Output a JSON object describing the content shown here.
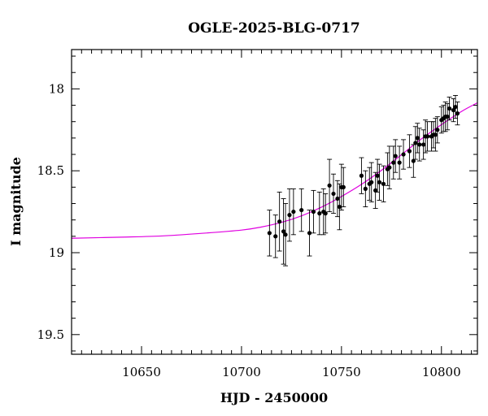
{
  "chart_data": {
    "type": "scatter",
    "title": "OGLE-2025-BLG-0717",
    "xlabel": "HJD - 2450000",
    "ylabel": "I magnitude",
    "xlim": [
      10615,
      10818
    ],
    "ylim": [
      19.62,
      17.76
    ],
    "y_inverted": true,
    "x_major_ticks": [
      10650,
      10700,
      10750,
      10800
    ],
    "x_minor_step": 5,
    "y_major_ticks": [
      18,
      18.5,
      19,
      19.5
    ],
    "y_tick_labels": [
      "18",
      "18.5",
      "19",
      "19.5"
    ],
    "y_minor_step": 0.1,
    "grid": false,
    "colors": {
      "points": "#000000",
      "errorbars": "#000000",
      "model": "#e000e0"
    },
    "observations": {
      "x": [
        10714,
        10717,
        10719,
        10721,
        10722,
        10724,
        10726,
        10730,
        10734,
        10736,
        10739,
        10741,
        10742,
        10744,
        10746,
        10748,
        10749,
        10750,
        10751,
        10760,
        10762,
        10764,
        10765,
        10767,
        10768,
        10769,
        10771,
        10773,
        10774,
        10776,
        10777,
        10779,
        10781,
        10784,
        10786,
        10787,
        10788,
        10789,
        10791,
        10792,
        10793,
        10795,
        10796,
        10797,
        10798,
        10800,
        10801,
        10802,
        10803,
        10804,
        10806,
        10807,
        10808
      ],
      "y": [
        18.88,
        18.9,
        18.81,
        18.87,
        18.89,
        18.77,
        18.75,
        18.74,
        18.88,
        18.75,
        18.76,
        18.75,
        18.76,
        18.59,
        18.64,
        18.67,
        18.72,
        18.6,
        18.6,
        18.53,
        18.61,
        18.58,
        18.57,
        18.62,
        18.53,
        18.57,
        18.58,
        18.49,
        18.48,
        18.45,
        18.41,
        18.45,
        18.4,
        18.38,
        18.44,
        18.33,
        18.3,
        18.34,
        18.34,
        18.29,
        18.29,
        18.29,
        18.28,
        18.28,
        18.25,
        18.19,
        18.18,
        18.17,
        18.17,
        18.12,
        18.13,
        18.11,
        18.15
      ],
      "err": [
        0.14,
        0.13,
        0.18,
        0.2,
        0.19,
        0.16,
        0.14,
        0.13,
        0.14,
        0.13,
        0.13,
        0.14,
        0.12,
        0.16,
        0.12,
        0.11,
        0.14,
        0.14,
        0.12,
        0.11,
        0.11,
        0.1,
        0.12,
        0.11,
        0.1,
        0.11,
        0.11,
        0.1,
        0.13,
        0.1,
        0.1,
        0.1,
        0.09,
        0.1,
        0.1,
        0.1,
        0.09,
        0.1,
        0.09,
        0.1,
        0.09,
        0.09,
        0.08,
        0.1,
        0.08,
        0.08,
        0.08,
        0.09,
        0.08,
        0.07,
        0.07,
        0.07,
        0.07
      ]
    },
    "model_curve": {
      "x": [
        10615,
        10640,
        10660,
        10680,
        10700,
        10710,
        10720,
        10730,
        10740,
        10750,
        10760,
        10770,
        10780,
        10790,
        10800,
        10810,
        10818
      ],
      "y": [
        18.912,
        18.905,
        18.898,
        18.882,
        18.862,
        18.843,
        18.815,
        18.775,
        18.722,
        18.657,
        18.583,
        18.497,
        18.402,
        18.305,
        18.218,
        18.138,
        18.085
      ]
    }
  }
}
